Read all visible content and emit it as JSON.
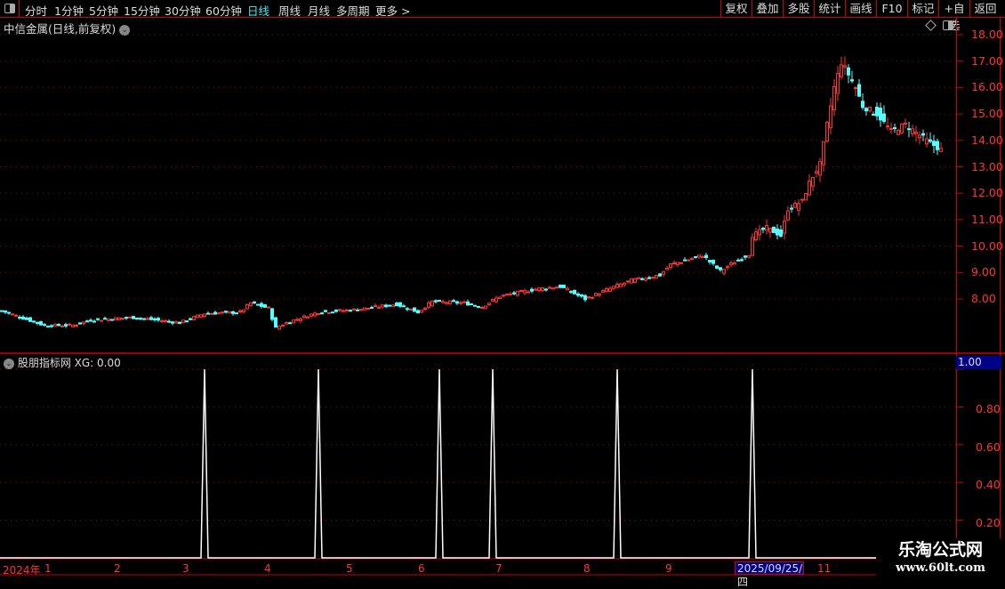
{
  "toolbar": {
    "periods": [
      "分时",
      "1分钟",
      "5分钟",
      "15分钟",
      "30分钟",
      "60分钟",
      "日线",
      "周线",
      "月线",
      "多周期",
      "更多 >"
    ],
    "active_period": "日线",
    "right_buttons": [
      "复权",
      "叠加",
      "多股",
      "统计",
      "画线",
      "F10",
      "标记",
      "+自选",
      "返回"
    ]
  },
  "main": {
    "title": "中信金属(日线,前复权)",
    "price_axis": [
      "18.00",
      "17.00",
      "16.00",
      "15.00",
      "14.00",
      "13.00",
      "12.00",
      "11.00",
      "10.00",
      "9.00",
      "8.00"
    ]
  },
  "indicator": {
    "title": "股朋指标网 XG: 0.00",
    "current_value": "1.00",
    "axis": [
      "0.80",
      "0.60",
      "0.40",
      "0.20"
    ]
  },
  "time_axis": {
    "labels": [
      "2024年",
      "1",
      "2",
      "3",
      "4",
      "5",
      "6",
      "7",
      "8",
      "9",
      "11"
    ],
    "highlight_date": "2025/09/25/四"
  },
  "watermark": {
    "name": "乐淘公式网",
    "url": "www.60lt.com"
  },
  "colors": {
    "up": "#ff3333",
    "down": "#55ffff",
    "grid": "#aa0000",
    "accent": "#44eeff",
    "signal": "#ffffff"
  },
  "chart_data": {
    "type": "candlestick",
    "price_ylim": [
      7,
      18
    ],
    "close_keypoints": [
      [
        0,
        7.55
      ],
      [
        12,
        7.0
      ],
      [
        20,
        7.0
      ],
      [
        25,
        7.2
      ],
      [
        37,
        7.3
      ],
      [
        50,
        7.1
      ],
      [
        57,
        7.45
      ],
      [
        67,
        7.5
      ],
      [
        70,
        7.85
      ],
      [
        75,
        7.65
      ],
      [
        77,
        6.9
      ],
      [
        80,
        7.1
      ],
      [
        89,
        7.5
      ],
      [
        100,
        7.6
      ],
      [
        111,
        7.8
      ],
      [
        117,
        7.5
      ],
      [
        121,
        7.9
      ],
      [
        130,
        7.85
      ],
      [
        135,
        7.7
      ],
      [
        140,
        8.1
      ],
      [
        150,
        8.37
      ],
      [
        157,
        8.47
      ],
      [
        164,
        8.0
      ],
      [
        172,
        8.45
      ],
      [
        177,
        8.7
      ],
      [
        185,
        8.9
      ],
      [
        188,
        9.3
      ],
      [
        192,
        9.45
      ],
      [
        197,
        9.65
      ],
      [
        202,
        9.05
      ],
      [
        206,
        9.4
      ],
      [
        210,
        9.7
      ],
      [
        211,
        10.4
      ],
      [
        215,
        10.7
      ],
      [
        219,
        10.4
      ],
      [
        221,
        11.4
      ],
      [
        225,
        11.7
      ],
      [
        227,
        12.4
      ],
      [
        230,
        13.1
      ],
      [
        232,
        14.6
      ],
      [
        234,
        16.0
      ],
      [
        236,
        16.95
      ],
      [
        238,
        16.5
      ],
      [
        240,
        16.0
      ],
      [
        242,
        15.3
      ],
      [
        246,
        15.0
      ],
      [
        250,
        14.35
      ],
      [
        254,
        14.6
      ],
      [
        257,
        14.3
      ],
      [
        261,
        13.9
      ],
      [
        264,
        13.65
      ]
    ],
    "signal": {
      "name": "XG",
      "ylim": [
        0,
        1
      ],
      "ticks": [
        0.2,
        0.4,
        0.6,
        0.8,
        1.0
      ],
      "spike_indices": [
        57,
        89,
        123,
        138,
        173,
        211
      ],
      "spike_value": 1
    }
  }
}
